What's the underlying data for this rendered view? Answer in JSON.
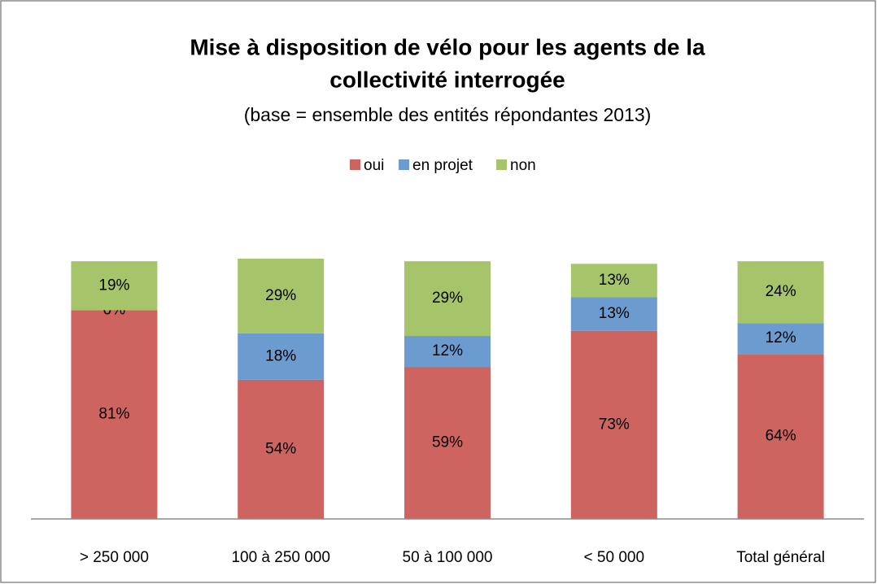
{
  "chart_data": {
    "type": "stacked_bar",
    "title": [
      "Mise à disposition de vélo pour les agents de la",
      "collectivité interrogée"
    ],
    "subtitle": "(base = ensemble des entités répondantes 2013)",
    "categories": [
      "> 250 000",
      "100 à 250 000",
      "50 à 100 000",
      "< 50 000",
      "Total général"
    ],
    "series": [
      {
        "name": "oui",
        "color": "#cd6460",
        "values": [
          81,
          54,
          59,
          73,
          64
        ],
        "value_labels": [
          "81%",
          "54%",
          "59%",
          "73%",
          "64%"
        ]
      },
      {
        "name": "en projet",
        "color": "#6c9bd0",
        "values": [
          0,
          18,
          12,
          13,
          12
        ],
        "value_labels": [
          "0%",
          "18%",
          "12%",
          "13%",
          "12%"
        ]
      },
      {
        "name": "non",
        "color": "#a6c56b",
        "values": [
          19,
          29,
          29,
          13,
          24
        ],
        "value_labels": [
          "19%",
          "29%",
          "29%",
          "13%",
          "24%"
        ]
      }
    ],
    "legend": "top"
  }
}
